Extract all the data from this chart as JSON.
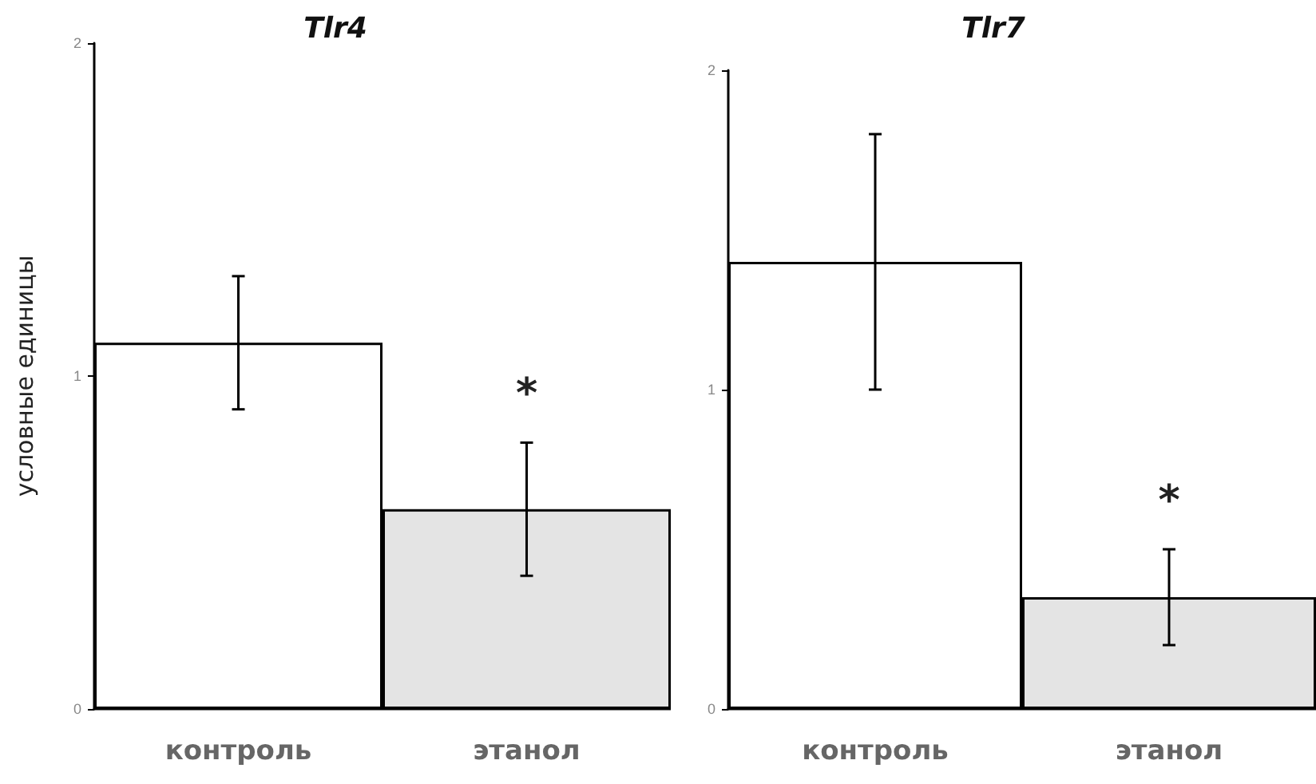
{
  "chart_data": [
    {
      "type": "bar",
      "title": "Tlr4",
      "ylabel": "условные единицы",
      "categories": [
        "контроль",
        "этанол"
      ],
      "values": [
        1.1,
        0.6
      ],
      "colors": [
        "#ffffff",
        "#e4e4e4"
      ],
      "errors": [
        [
          0.9,
          1.3
        ],
        [
          0.4,
          0.8
        ]
      ],
      "ylim": [
        0,
        2
      ],
      "yticks": [
        0,
        1,
        2
      ],
      "grid": false,
      "annotations": [
        "*"
      ]
    },
    {
      "type": "bar",
      "title": "Tlr7",
      "categories": [
        "контроль",
        "этанол"
      ],
      "values": [
        1.4,
        0.35
      ],
      "colors": [
        "#ffffff",
        "#e4e4e4"
      ],
      "errors": [
        [
          1.0,
          1.8
        ],
        [
          0.2,
          0.5
        ]
      ],
      "ylim": [
        0,
        2
      ],
      "yticks": [
        0,
        1,
        2
      ],
      "grid": false,
      "annotations": [
        "*"
      ]
    }
  ]
}
